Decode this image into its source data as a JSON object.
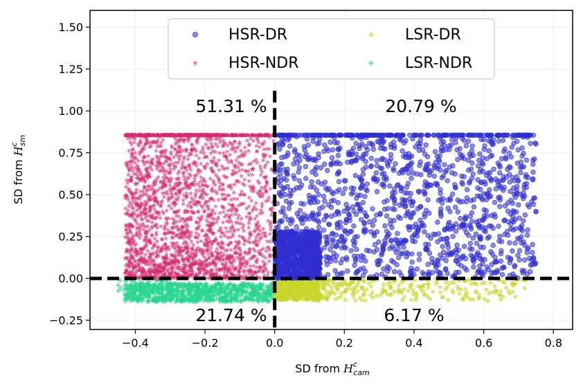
{
  "chart_data": {
    "type": "scatter",
    "xlabel": {
      "prefix": "SD from ",
      "symbol": "H",
      "sup": "c",
      "sub": "cam"
    },
    "ylabel": {
      "prefix": "SD from ",
      "symbol": "H",
      "sup": "c",
      "sub": "sm"
    },
    "xlim": [
      -0.53,
      0.855
    ],
    "ylim": [
      -0.305,
      1.6
    ],
    "xticks": [
      -0.4,
      -0.2,
      0.0,
      0.2,
      0.4,
      0.6,
      0.8
    ],
    "xtick_labels": [
      "−0.4",
      "−0.2",
      "0.0",
      "0.2",
      "0.4",
      "0.6",
      "0.8"
    ],
    "yticks": [
      -0.25,
      0.0,
      0.25,
      0.5,
      0.75,
      1.0,
      1.25,
      1.5
    ],
    "ytick_labels": [
      "−0.25",
      "0.00",
      "0.25",
      "0.50",
      "0.75",
      "1.00",
      "1.25",
      "1.50"
    ],
    "grid": true,
    "legend_position": "top-center",
    "reference_lines": {
      "x": 0.0,
      "y": 0.0,
      "style": "dashed",
      "color": "#000000"
    },
    "series": [
      {
        "name": "HSR-DR",
        "marker": "circle",
        "color": "#2f2fd0",
        "x_range": [
          0.0,
          0.75
        ],
        "y_range": [
          0.0,
          0.855
        ],
        "cap_value": 0.855
      },
      {
        "name": "HSR-NDR",
        "marker": "star",
        "color": "#d62a70",
        "x_range": [
          -0.43,
          0.0
        ],
        "y_range": [
          0.0,
          0.855
        ],
        "cap_value": 0.855
      },
      {
        "name": "LSR-DR",
        "marker": "pentagon",
        "color": "#c8d62a",
        "x_range": [
          0.0,
          0.72
        ],
        "y_range": [
          -0.14,
          0.0
        ]
      },
      {
        "name": "LSR-NDR",
        "marker": "plus",
        "color": "#2ad690",
        "x_range": [
          -0.45,
          0.0
        ],
        "y_range": [
          -0.16,
          0.0
        ]
      }
    ],
    "annotations": [
      {
        "text": "51.31 %",
        "quadrant": "upper-left"
      },
      {
        "text": "20.79 %",
        "quadrant": "upper-right"
      },
      {
        "text": "21.74 %",
        "quadrant": "lower-left"
      },
      {
        "text": "6.17 %",
        "quadrant": "lower-right"
      }
    ]
  }
}
